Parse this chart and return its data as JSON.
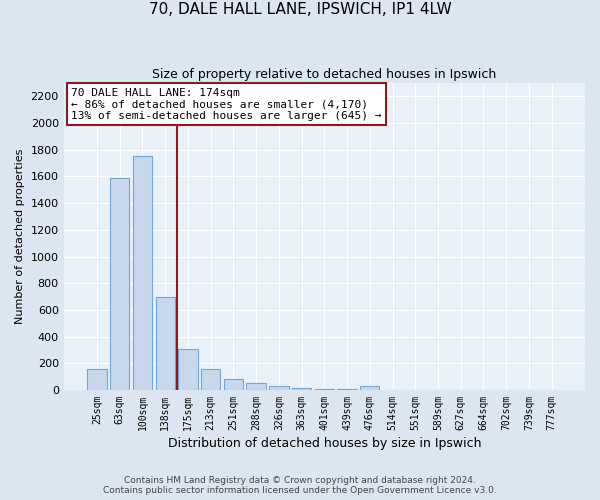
{
  "title": "70, DALE HALL LANE, IPSWICH, IP1 4LW",
  "subtitle": "Size of property relative to detached houses in Ipswich",
  "xlabel": "Distribution of detached houses by size in Ipswich",
  "ylabel": "Number of detached properties",
  "categories": [
    "25sqm",
    "63sqm",
    "100sqm",
    "138sqm",
    "175sqm",
    "213sqm",
    "251sqm",
    "288sqm",
    "326sqm",
    "363sqm",
    "401sqm",
    "439sqm",
    "476sqm",
    "514sqm",
    "551sqm",
    "589sqm",
    "627sqm",
    "664sqm",
    "702sqm",
    "739sqm",
    "777sqm"
  ],
  "values": [
    160,
    1590,
    1750,
    700,
    310,
    160,
    80,
    50,
    30,
    15,
    10,
    10,
    30,
    0,
    0,
    0,
    0,
    0,
    0,
    0,
    0
  ],
  "bar_color": "#c8d8ec",
  "bar_edge_color": "#6fa8d8",
  "property_line_color": "#8b1a1a",
  "property_line_idx": 4,
  "annotation_line1": "70 DALE HALL LANE: 174sqm",
  "annotation_line2": "← 86% of detached houses are smaller (4,170)",
  "annotation_line3": "13% of semi-detached houses are larger (645) →",
  "annotation_box_facecolor": "#ffffff",
  "annotation_box_edgecolor": "#8b1a1a",
  "ylim": [
    0,
    2300
  ],
  "yticks": [
    0,
    200,
    400,
    600,
    800,
    1000,
    1200,
    1400,
    1600,
    1800,
    2000,
    2200
  ],
  "footer1": "Contains HM Land Registry data © Crown copyright and database right 2024.",
  "footer2": "Contains public sector information licensed under the Open Government Licence v3.0.",
  "fig_facecolor": "#dce6f0",
  "plot_facecolor": "#e8f0f8",
  "grid_color": "#ffffff",
  "title_fontsize": 11,
  "subtitle_fontsize": 9,
  "xlabel_fontsize": 9,
  "ylabel_fontsize": 8,
  "tick_fontsize": 8,
  "xtick_fontsize": 7,
  "annot_fontsize": 8,
  "footer_fontsize": 6.5
}
